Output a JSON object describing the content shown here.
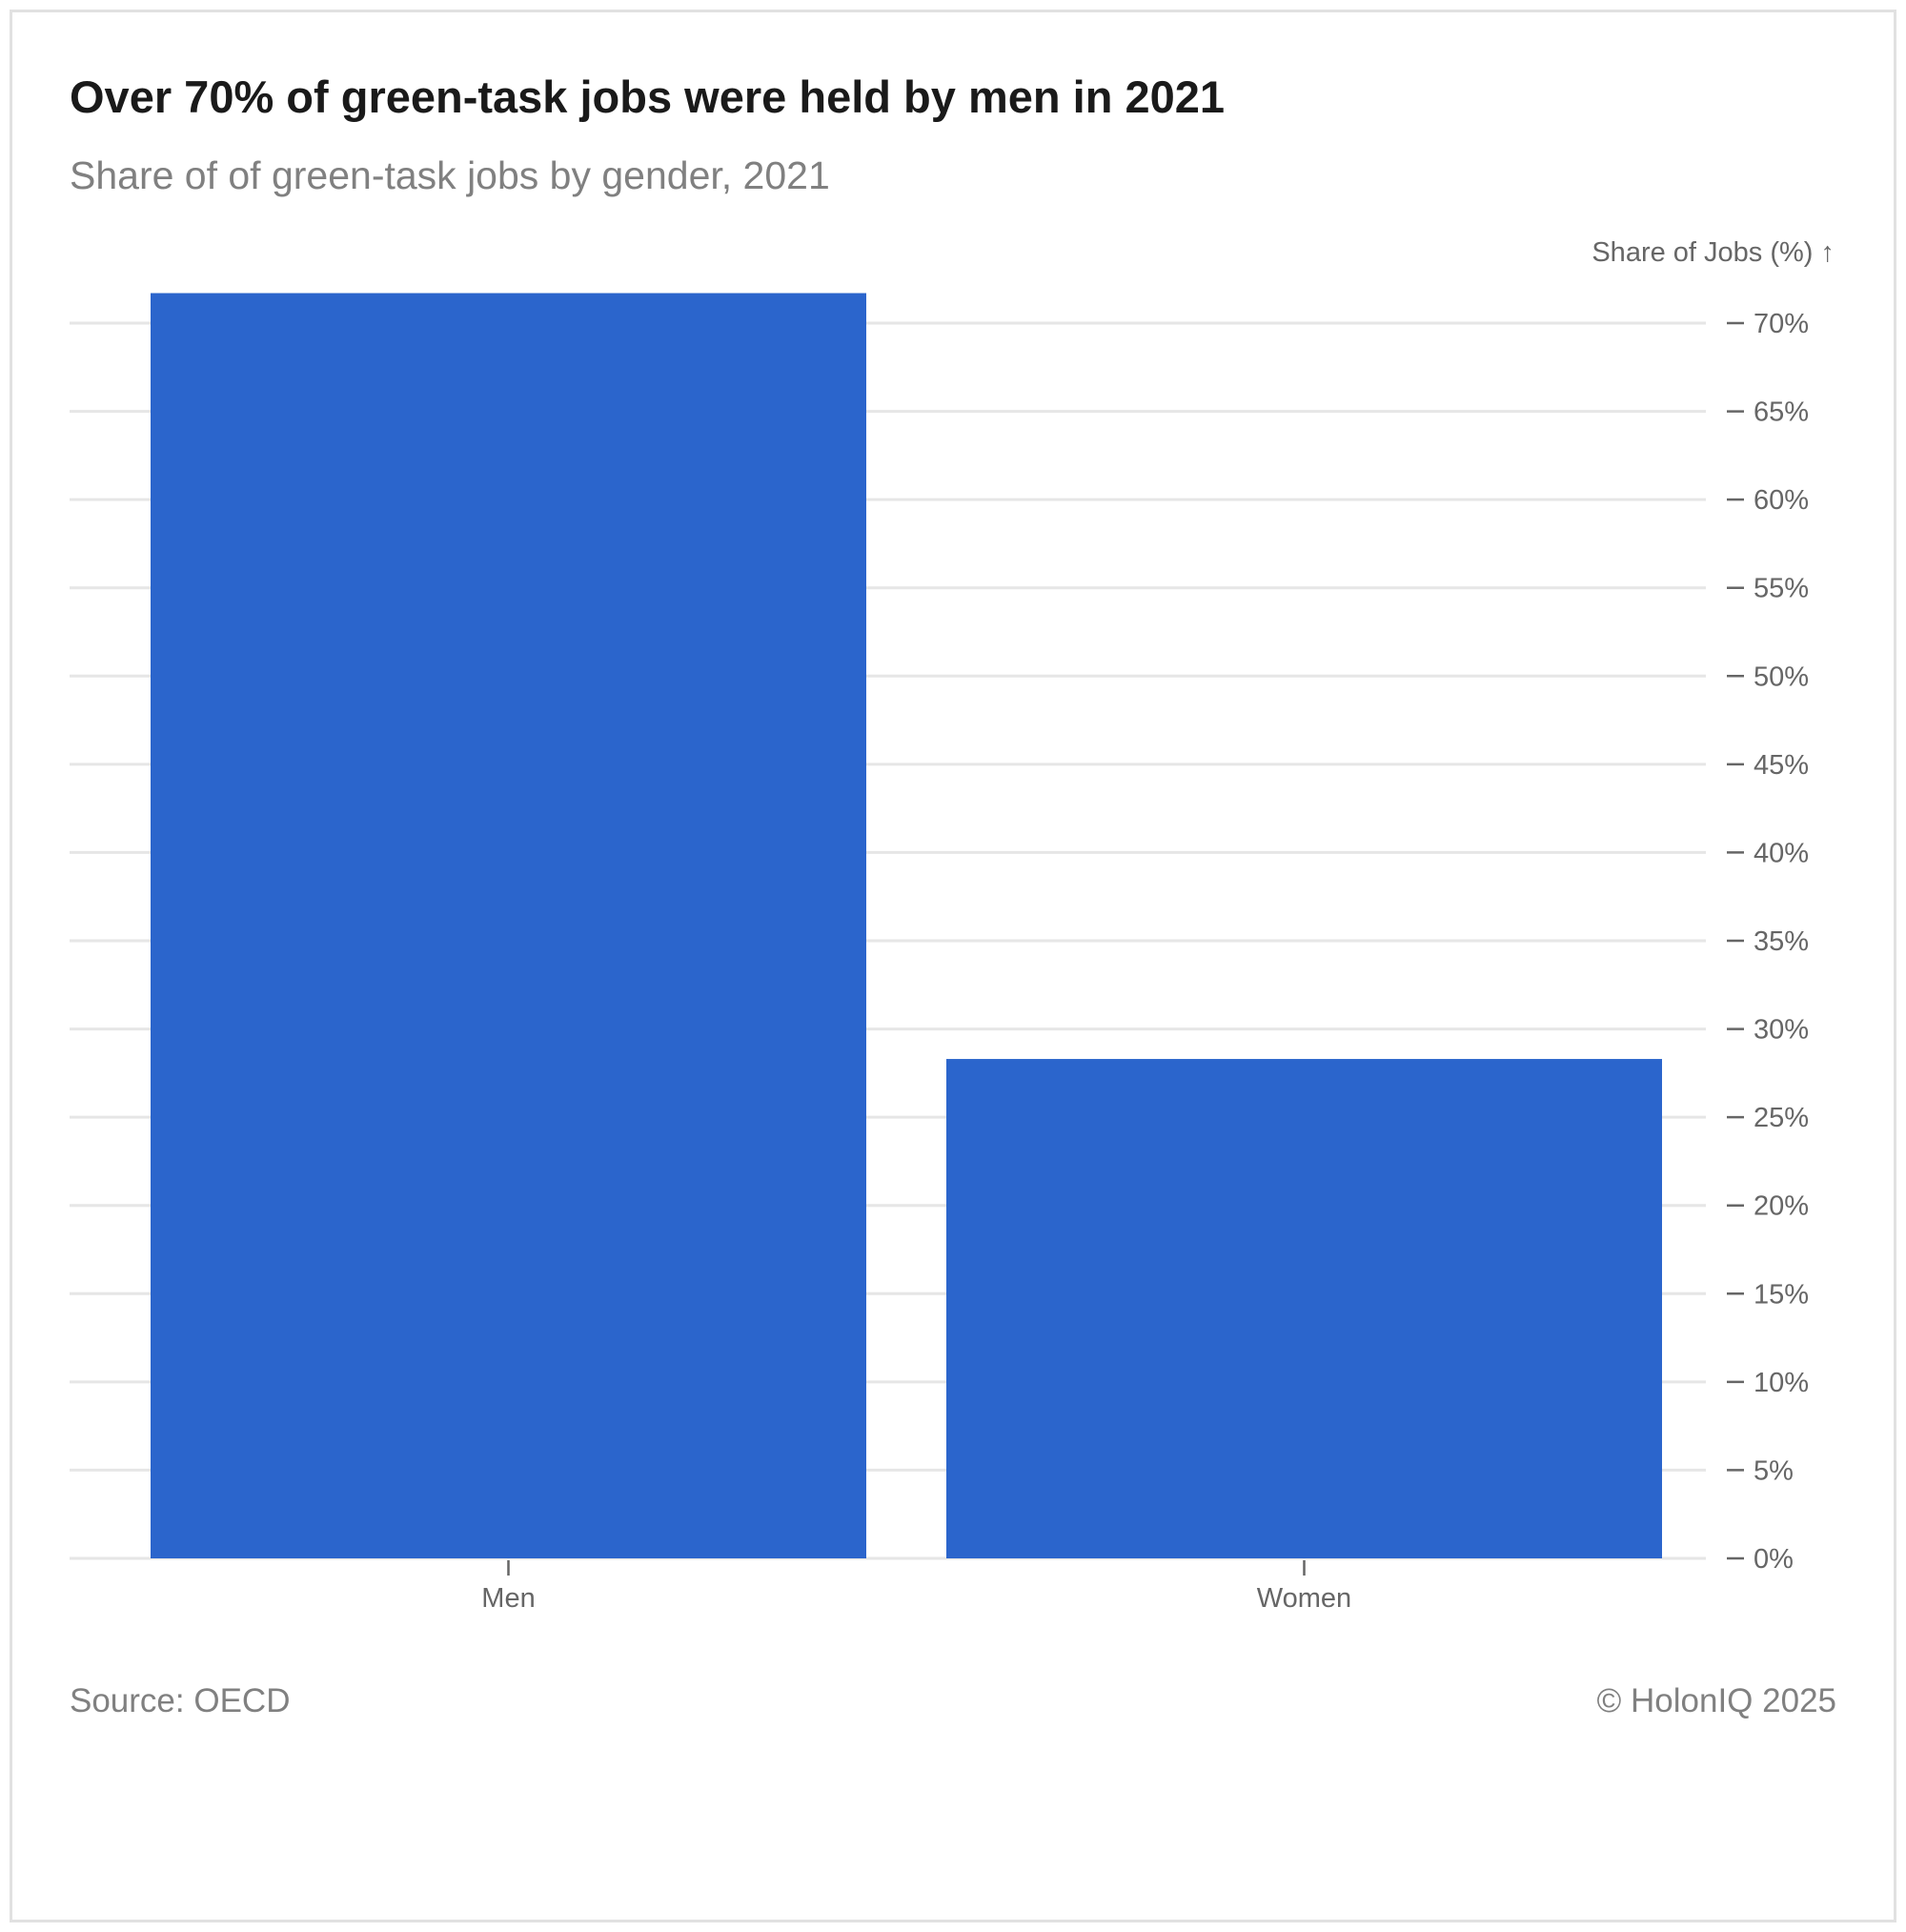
{
  "chart_data": {
    "type": "bar",
    "title": "Over 70% of green-task jobs were held by men in 2021",
    "subtitle": "Share of of green-task jobs by gender, 2021",
    "ylabel": "Share of Jobs (%) ↑",
    "xlabel": "",
    "categories": [
      "Men",
      "Women"
    ],
    "values": [
      71.7,
      28.3
    ],
    "ylim": [
      0,
      72
    ],
    "yticks": [
      0,
      5,
      10,
      15,
      20,
      25,
      30,
      35,
      40,
      45,
      50,
      55,
      60,
      65,
      70
    ],
    "tick_suffix": "%",
    "grid": true,
    "y_axis_side": "right",
    "bar_color": "#2b65cc"
  },
  "footer": {
    "source": "Source: OECD",
    "copyright": "© HolonIQ 2025"
  }
}
